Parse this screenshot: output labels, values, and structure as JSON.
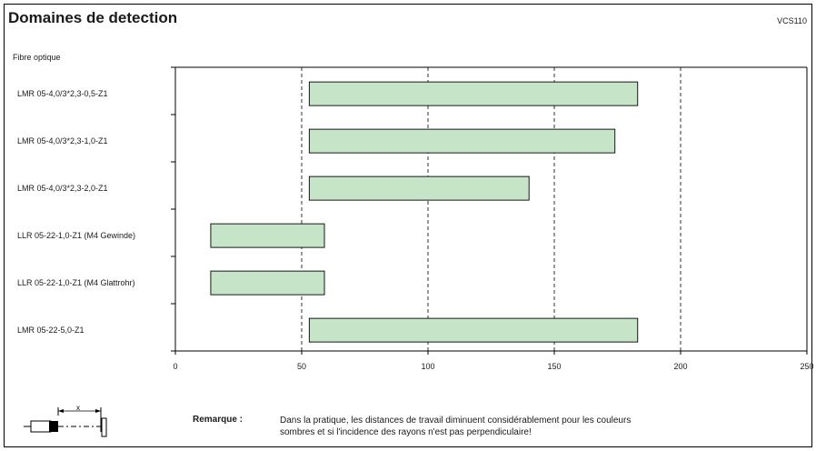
{
  "header": {
    "title": "Domaines de detection",
    "code": "VCS110"
  },
  "section_label": "Fibre optique",
  "chart_data": {
    "type": "bar",
    "orientation": "horizontal",
    "bar_style": "range",
    "categories": [
      "LMR 05-4,0/3*2,3-0,5-Z1",
      "LMR 05-4,0/3*2,3-1,0-Z1",
      "LMR 05-4,0/3*2,3-2,0-Z1",
      "LLR 05-22-1,0-Z1 (M4 Gewinde)",
      "LLR 05-22-1,0-Z1 (M4 Glattrohr)",
      "LMR 05-22-5,0-Z1"
    ],
    "ranges": [
      [
        53,
        183
      ],
      [
        53,
        174
      ],
      [
        53,
        140
      ],
      [
        14,
        59
      ],
      [
        14,
        59
      ],
      [
        53,
        183
      ]
    ],
    "xlim": [
      0,
      250
    ],
    "xticks": [
      0,
      50,
      100,
      150,
      200,
      250
    ],
    "xticklabels": [
      "0",
      "50",
      "100",
      "150",
      "200",
      "250"
    ],
    "grid": "vertical dashed at 50, 100, 150, 200",
    "bar_color": "#c6e4c8",
    "bar_edge_color": "#000000"
  },
  "note": {
    "label": "Remarque :",
    "text_line1": "Dans la pratique, les distances de travail diminuent considérablement pour les couleurs",
    "text_line2": "sombres et si l'incidence des rayons n'est pas perpendiculaire!"
  },
  "diagram": {
    "label": "x"
  }
}
